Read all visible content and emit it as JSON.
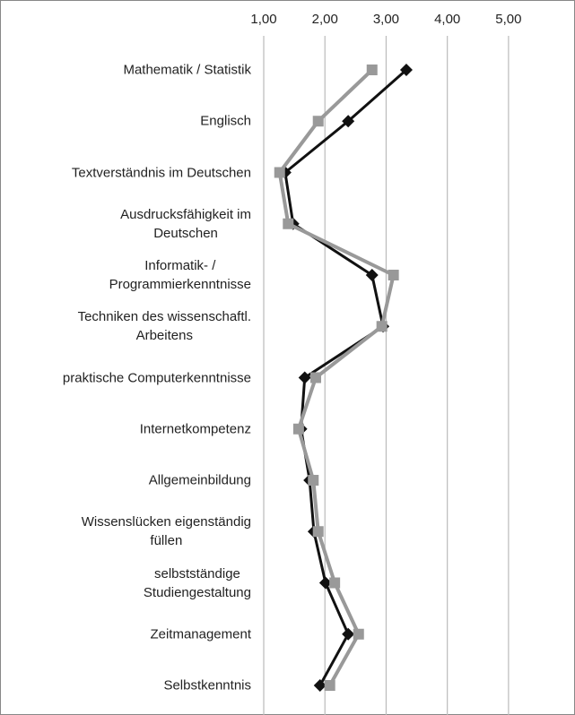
{
  "chart_data": {
    "type": "line",
    "orientation": "horizontal",
    "categories": [
      "Mathematik / Statistik",
      "Englisch",
      "Textverständnis im Deutschen",
      "Ausdrucksfähigkeit im\nDeutschen",
      "Informatik- /\nProgrammierkenntnisse",
      "Techniken des wissenschaftl.\nArbeitens",
      "praktische Computerkenntnisse",
      "Internetkompetenz",
      "Allgemeinbildung",
      "Wissenslücken eigenständig\nfüllen",
      "selbstständige\nStudiengestaltung",
      "Zeitmanagement",
      "Selbstkenntnis"
    ],
    "series": [
      {
        "color": "#111111",
        "marker": "diamond",
        "values": [
          3.33,
          2.38,
          1.35,
          1.48,
          2.77,
          2.95,
          1.67,
          1.61,
          1.75,
          1.82,
          2.01,
          2.38,
          1.92
        ]
      },
      {
        "color": "#999999",
        "marker": "square",
        "values": [
          2.77,
          1.89,
          1.26,
          1.4,
          3.12,
          2.93,
          1.85,
          1.57,
          1.81,
          1.89,
          2.16,
          2.55,
          2.08
        ]
      }
    ],
    "xlim": [
      1,
      5.5
    ],
    "xticks": [
      {
        "value": 1,
        "label": "1,00"
      },
      {
        "value": 2,
        "label": "2,00"
      },
      {
        "value": 3,
        "label": "3,00"
      },
      {
        "value": 4,
        "label": "4,00"
      },
      {
        "value": 5,
        "label": "5,00"
      }
    ],
    "grid": true
  }
}
